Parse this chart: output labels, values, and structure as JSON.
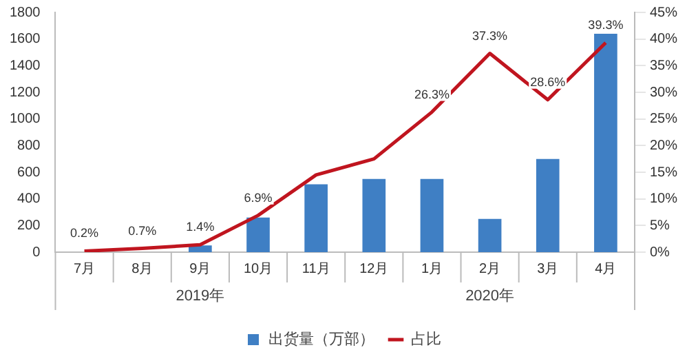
{
  "chart_data": {
    "type": "bar",
    "categories": [
      "7月",
      "8月",
      "9月",
      "10月",
      "11月",
      "12月",
      "1月",
      "2月",
      "3月",
      "4月"
    ],
    "series": [
      {
        "name": "出货量（万部）",
        "color": "#3f7fc4",
        "values": [
          0,
          0,
          50,
          260,
          510,
          550,
          550,
          250,
          700,
          1640
        ]
      },
      {
        "name": "占比",
        "type": "line",
        "axis": "y2",
        "color": "#c0151f",
        "values": [
          0.2,
          0.7,
          1.4,
          6.9,
          14.5,
          17.5,
          26.3,
          37.3,
          28.6,
          39.3
        ],
        "value_labels": [
          "0.2%",
          "0.7%",
          "1.4%",
          "6.9%",
          null,
          null,
          "26.3%",
          "37.3%",
          "28.6%",
          "39.3%"
        ]
      }
    ],
    "ylim": [
      0,
      1800
    ],
    "yticks": [
      0,
      200,
      400,
      600,
      800,
      1000,
      1200,
      1400,
      1600,
      1800
    ],
    "y2lim": [
      0,
      45
    ],
    "y2ticks": [
      {
        "value": 0,
        "label": "0%"
      },
      {
        "value": 5,
        "label": "5%"
      },
      {
        "value": 10,
        "label": "10%"
      },
      {
        "value": 15,
        "label": "15%"
      },
      {
        "value": 20,
        "label": "20%"
      },
      {
        "value": 25,
        "label": "25%"
      },
      {
        "value": 30,
        "label": "30%"
      },
      {
        "value": 35,
        "label": "35%"
      },
      {
        "value": 40,
        "label": "40%"
      },
      {
        "value": 45,
        "label": "45%"
      }
    ],
    "annotations": [
      "2019年",
      "2020年"
    ],
    "legend": "bottom",
    "marker": "none",
    "grid": false
  }
}
